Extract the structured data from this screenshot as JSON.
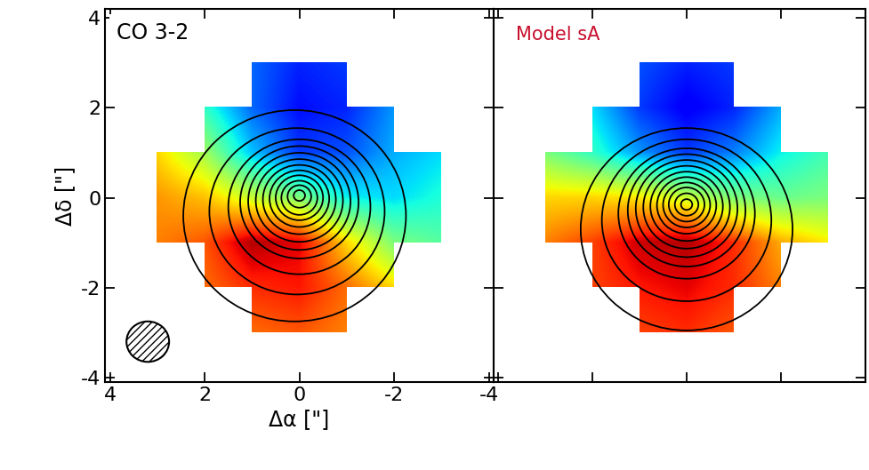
{
  "chart_data": [
    {
      "type": "heatmap",
      "title": "CO 3-2",
      "xlabel": "Δα [\"]",
      "ylabel": "Δδ [\"]",
      "x": [
        4,
        3,
        2,
        1,
        0,
        -1,
        -2,
        -3,
        -4
      ],
      "y": [
        4,
        3,
        2,
        1,
        0,
        -1,
        -2,
        -3,
        -4
      ],
      "cells": [
        [
          null,
          null,
          null,
          null,
          null,
          null,
          null,
          null,
          null
        ],
        [
          null,
          null,
          null,
          -0.7,
          -0.85,
          -0.8,
          null,
          null,
          null
        ],
        [
          null,
          null,
          -0.3,
          -0.7,
          -0.9,
          -0.85,
          -0.6,
          null,
          null
        ],
        [
          null,
          0.3,
          0.0,
          -0.5,
          -0.8,
          -0.75,
          -0.55,
          -0.45,
          null
        ],
        [
          null,
          0.45,
          0.35,
          0.1,
          -0.1,
          -0.4,
          -0.45,
          -0.35,
          null
        ],
        [
          null,
          0.5,
          0.6,
          0.9,
          0.8,
          0.3,
          -0.1,
          -0.2,
          null
        ],
        [
          null,
          null,
          0.55,
          0.7,
          0.75,
          0.55,
          0.3,
          null,
          null
        ],
        [
          null,
          null,
          null,
          0.55,
          0.6,
          0.5,
          null,
          null,
          null
        ],
        [
          null,
          null,
          null,
          null,
          null,
          null,
          null,
          null,
          null
        ]
      ],
      "clim": [
        -1.2,
        1.0
      ],
      "contours": [
        {
          "x": 0,
          "y": 0.05,
          "r": 0.12
        },
        {
          "x": 0,
          "y": 0.03,
          "r": 0.25
        },
        {
          "x": 0,
          "y": 0.0,
          "r": 0.38
        },
        {
          "x": 0,
          "y": 0.0,
          "r": 0.5
        },
        {
          "x": 0,
          "y": -0.02,
          "r": 0.63
        },
        {
          "x": 0,
          "y": -0.04,
          "r": 0.77
        },
        {
          "x": 0,
          "y": -0.06,
          "r": 0.92
        },
        {
          "x": 0,
          "y": -0.08,
          "r": 1.08
        },
        {
          "x": 0,
          "y": -0.1,
          "r": 1.25
        },
        {
          "x": 0,
          "y": -0.2,
          "r": 1.5
        },
        {
          "x": 0.05,
          "y": -0.3,
          "r": 1.85
        },
        {
          "x": 0.1,
          "y": -0.4,
          "r": 2.35
        }
      ],
      "beam": {
        "x": 3.2,
        "y": -3.2,
        "r": 0.45
      },
      "xlim": [
        4.1,
        -4.1
      ],
      "ylim": [
        -4.1,
        4.2
      ],
      "xticks": [
        4,
        2,
        0,
        -2,
        -4
      ],
      "yticks": [
        -4,
        -2,
        0,
        2,
        4
      ]
    },
    {
      "type": "heatmap",
      "title": "Model sA",
      "color": "#c8102e",
      "x": [
        4,
        3,
        2,
        1,
        0,
        -1,
        -2,
        -3,
        -4
      ],
      "y": [
        4,
        3,
        2,
        1,
        0,
        -1,
        -2,
        -3,
        -4
      ],
      "cells": [
        [
          null,
          null,
          null,
          null,
          null,
          null,
          null,
          null,
          null
        ],
        [
          null,
          null,
          null,
          -0.75,
          -0.85,
          -0.8,
          null,
          null,
          null
        ],
        [
          null,
          null,
          -0.45,
          -0.8,
          -0.95,
          -0.85,
          -0.55,
          null,
          null
        ],
        [
          null,
          -0.1,
          -0.3,
          -0.6,
          -0.8,
          -0.65,
          -0.4,
          -0.25,
          null
        ],
        [
          null,
          0.3,
          0.3,
          0.25,
          0.1,
          -0.1,
          -0.15,
          -0.1,
          null
        ],
        [
          null,
          0.5,
          0.65,
          0.85,
          0.9,
          0.7,
          0.4,
          0.25,
          null
        ],
        [
          null,
          null,
          0.65,
          0.75,
          0.8,
          0.7,
          0.5,
          null,
          null
        ],
        [
          null,
          null,
          null,
          0.65,
          0.7,
          0.6,
          null,
          null,
          null
        ],
        [
          null,
          null,
          null,
          null,
          null,
          null,
          null,
          null,
          null
        ]
      ],
      "clim": [
        -1.2,
        1.0
      ],
      "contours": [
        {
          "x": 0,
          "y": -0.15,
          "r": 0.12
        },
        {
          "x": 0,
          "y": -0.15,
          "r": 0.25
        },
        {
          "x": 0,
          "y": -0.15,
          "r": 0.38
        },
        {
          "x": 0,
          "y": -0.16,
          "r": 0.5
        },
        {
          "x": 0,
          "y": -0.17,
          "r": 0.63
        },
        {
          "x": 0,
          "y": -0.19,
          "r": 0.77
        },
        {
          "x": 0,
          "y": -0.21,
          "r": 0.92
        },
        {
          "x": 0,
          "y": -0.24,
          "r": 1.08
        },
        {
          "x": 0,
          "y": -0.28,
          "r": 1.25
        },
        {
          "x": 0,
          "y": -0.35,
          "r": 1.45
        },
        {
          "x": 0,
          "y": -0.5,
          "r": 1.8
        },
        {
          "x": 0,
          "y": -0.7,
          "r": 2.25
        }
      ],
      "xlim": [
        4.1,
        -3.8
      ],
      "ylim": [
        -4.1,
        4.2
      ],
      "xticks": [
        4,
        2,
        0,
        -2
      ],
      "yticks": [
        -4,
        -2,
        0,
        2,
        4
      ],
      "tick_labels": false
    }
  ]
}
